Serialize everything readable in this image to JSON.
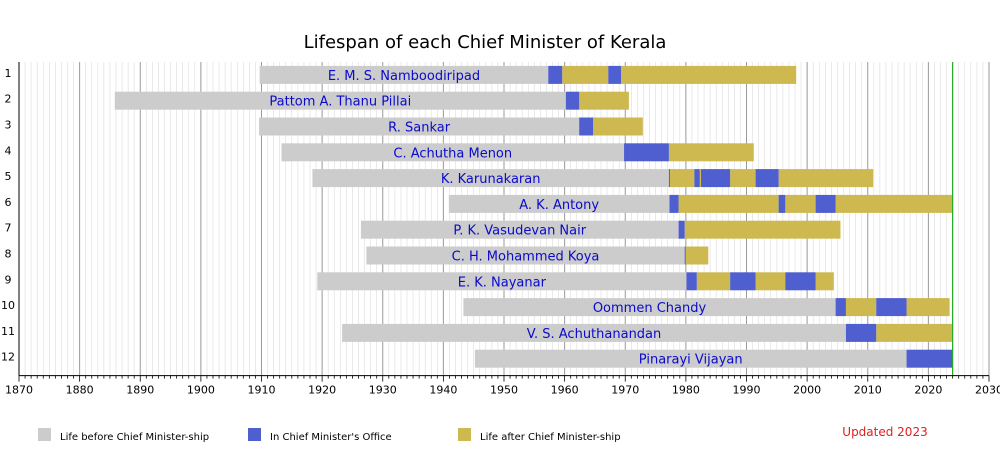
{
  "chart_data": {
    "type": "timeline",
    "title": "Lifespan of each Chief Minister of Kerala",
    "xlim": [
      1870,
      2030
    ],
    "xticks": [
      1870,
      1880,
      1890,
      1900,
      1910,
      1920,
      1930,
      1940,
      1950,
      1960,
      1970,
      1980,
      1990,
      2000,
      2010,
      2020,
      2030
    ],
    "current_year": 2024,
    "grid": true,
    "colors": {
      "before": "#cccccc",
      "office": "#4f5fd0",
      "after": "#cdb94f",
      "label": "#0a0acc",
      "now_line": "#22aa22",
      "updated": "#e02020"
    },
    "legend": [
      {
        "key": "before",
        "label": "Life before Chief Minister-ship"
      },
      {
        "key": "office",
        "label": "In Chief Minister's Office"
      },
      {
        "key": "after",
        "label": "Life after Chief Minister-ship"
      }
    ],
    "note": "Updated 2023",
    "rows": [
      {
        "n": "1",
        "name": "E. M. S. Namboodiripad",
        "born": 1909.7,
        "end": 1998.2,
        "terms": [
          [
            1957.3,
            1959.6
          ],
          [
            1967.2,
            1969.3
          ]
        ]
      },
      {
        "n": "2",
        "name": "Pattom A. Thanu Pillai",
        "born": 1885.8,
        "end": 1970.6,
        "terms": [
          [
            1960.2,
            1962.4
          ]
        ]
      },
      {
        "n": "3",
        "name": "R. Sankar",
        "born": 1909.6,
        "end": 1972.9,
        "terms": [
          [
            1962.4,
            1964.7
          ]
        ]
      },
      {
        "n": "4",
        "name": "C. Achutha Menon",
        "born": 1913.3,
        "end": 1991.2,
        "terms": [
          [
            1969.8,
            1977.2
          ]
        ]
      },
      {
        "n": "5",
        "name": "K. Karunakaran",
        "born": 1918.4,
        "end": 2010.9,
        "terms": [
          [
            1977.2,
            1977.3
          ],
          [
            1981.4,
            1982.3
          ],
          [
            1982.5,
            1987.3
          ],
          [
            1991.5,
            1995.3
          ]
        ]
      },
      {
        "n": "6",
        "name": "A. K. Antony",
        "born": 1940.9,
        "end": 2024,
        "terms": [
          [
            1977.3,
            1978.8
          ],
          [
            1995.3,
            1996.4
          ],
          [
            2001.4,
            2004.7
          ]
        ]
      },
      {
        "n": "7",
        "name": "P. K. Vasudevan Nair",
        "born": 1926.4,
        "end": 2005.5,
        "terms": [
          [
            1978.8,
            1979.8
          ]
        ]
      },
      {
        "n": "8",
        "name": "C. H. Mohammed Koya",
        "born": 1927.3,
        "end": 1983.7,
        "terms": [
          [
            1979.8,
            1979.9
          ]
        ]
      },
      {
        "n": "9",
        "name": "E. K. Nayanar",
        "born": 1919.2,
        "end": 2004.4,
        "terms": [
          [
            1980.1,
            1981.8
          ],
          [
            1987.3,
            1991.5
          ],
          [
            1996.4,
            2001.4
          ]
        ]
      },
      {
        "n": "10",
        "name": "Oommen Chandy",
        "born": 1943.3,
        "end": 2023.5,
        "terms": [
          [
            2004.7,
            2006.4
          ],
          [
            2011.4,
            2016.4
          ]
        ]
      },
      {
        "n": "11",
        "name": "V. S. Achuthanandan",
        "born": 1923.3,
        "end": 2024,
        "terms": [
          [
            2006.4,
            2011.4
          ]
        ]
      },
      {
        "n": "12",
        "name": "Pinarayi Vijayan",
        "born": 1945.2,
        "end": 2024,
        "terms": [
          [
            2016.4,
            2024
          ]
        ]
      }
    ]
  }
}
